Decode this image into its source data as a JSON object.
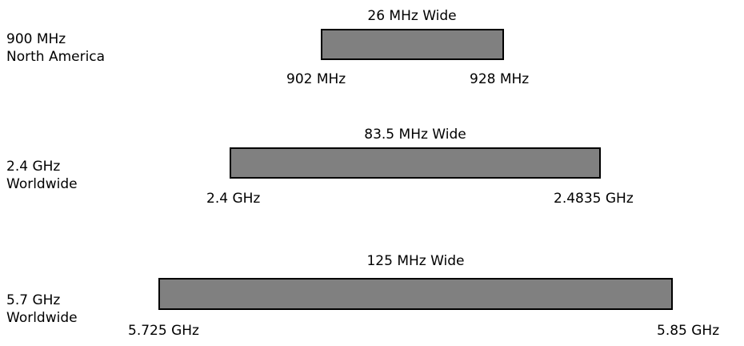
{
  "bands": [
    {
      "region_name": "900 MHz",
      "region_area": "North America",
      "width_label": "26 MHz Wide",
      "start_label": "902 MHz",
      "end_label": "928 MHz",
      "bar_color": "#808080"
    },
    {
      "region_name": "2.4 GHz",
      "region_area": "Worldwide",
      "width_label": "83.5 MHz Wide",
      "start_label": "2.4 GHz",
      "end_label": "2.4835 GHz",
      "bar_color": "#808080"
    },
    {
      "region_name": "5.7 GHz",
      "region_area": "Worldwide",
      "width_label": "125 MHz Wide",
      "start_label": "5.725 GHz",
      "end_label": "5.85 GHz",
      "bar_color": "#808080"
    }
  ]
}
